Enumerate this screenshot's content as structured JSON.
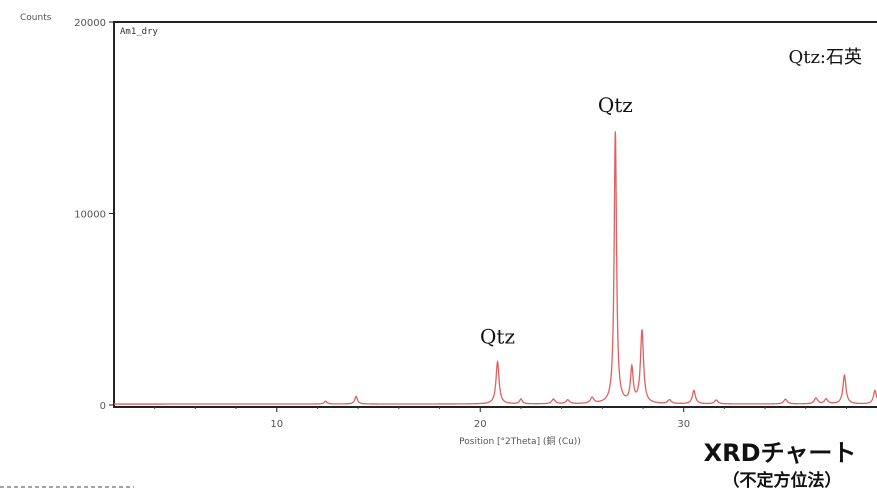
{
  "chart_data": {
    "type": "line",
    "ylabel": "Counts",
    "xlabel": "Position [°2Theta] (銅 (Cu))",
    "series_label": "Am1_dry",
    "xlim": [
      2,
      39.5
    ],
    "ylim": [
      0,
      20000
    ],
    "x_ticks": [
      10,
      20,
      30
    ],
    "y_ticks": [
      0,
      10000,
      20000
    ],
    "line_color": "#e06060",
    "baseline": 50,
    "peaks": [
      {
        "x": 12.4,
        "y": 150,
        "w": 0.08
      },
      {
        "x": 13.9,
        "y": 400,
        "w": 0.08
      },
      {
        "x": 20.85,
        "y": 2200,
        "w": 0.09
      },
      {
        "x": 22.0,
        "y": 250,
        "w": 0.08
      },
      {
        "x": 23.6,
        "y": 250,
        "w": 0.1
      },
      {
        "x": 24.3,
        "y": 200,
        "w": 0.1
      },
      {
        "x": 25.5,
        "y": 300,
        "w": 0.1
      },
      {
        "x": 26.64,
        "y": 14200,
        "w": 0.07
      },
      {
        "x": 27.45,
        "y": 1800,
        "w": 0.08
      },
      {
        "x": 27.95,
        "y": 3800,
        "w": 0.09
      },
      {
        "x": 29.3,
        "y": 200,
        "w": 0.1
      },
      {
        "x": 30.5,
        "y": 700,
        "w": 0.09
      },
      {
        "x": 31.6,
        "y": 200,
        "w": 0.1
      },
      {
        "x": 35.0,
        "y": 250,
        "w": 0.1
      },
      {
        "x": 36.5,
        "y": 300,
        "w": 0.1
      },
      {
        "x": 37.0,
        "y": 250,
        "w": 0.1
      },
      {
        "x": 37.9,
        "y": 1500,
        "w": 0.09
      },
      {
        "x": 39.4,
        "y": 700,
        "w": 0.09
      }
    ],
    "annotations": [
      {
        "text": "Qtz",
        "x": 20.85,
        "y": 3200
      },
      {
        "text": "Qtz",
        "x": 26.64,
        "y": 15300
      }
    ]
  },
  "legend_note": "Qtz:石英",
  "caption": {
    "line1": "XRDチャート",
    "line2": "（不定方位法）"
  }
}
